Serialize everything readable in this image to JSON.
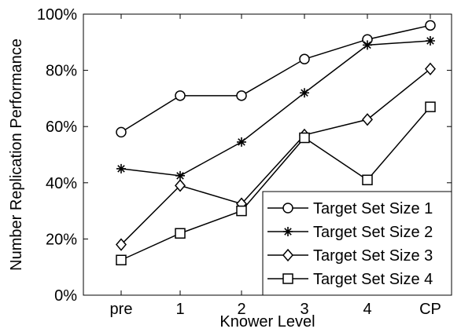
{
  "chart_data": {
    "type": "line",
    "title": "",
    "xlabel": "Knower Level",
    "ylabel": "Number Replication Performance",
    "categories": [
      "pre",
      "1",
      "2",
      "3",
      "4",
      "CP"
    ],
    "ylim": [
      0,
      100
    ],
    "yticks": [
      0,
      20,
      40,
      60,
      80,
      100
    ],
    "ytick_labels": [
      "0%",
      "20%",
      "40%",
      "60%",
      "80%",
      "100%"
    ],
    "grid": false,
    "legend_position": "bottom-right",
    "series": [
      {
        "name": "Target Set Size 1",
        "marker": "circle",
        "values": [
          58,
          71,
          71,
          84,
          91,
          96
        ]
      },
      {
        "name": "Target Set Size 2",
        "marker": "asterisk",
        "values": [
          45,
          42.5,
          54.5,
          72,
          89,
          90.5
        ]
      },
      {
        "name": "Target Set Size 3",
        "marker": "diamond",
        "values": [
          18,
          39,
          32.5,
          57,
          62.5,
          80.5
        ]
      },
      {
        "name": "Target Set Size 4",
        "marker": "square",
        "values": [
          12.5,
          22,
          30,
          56,
          41,
          67
        ]
      }
    ],
    "line_color": "#000000"
  }
}
